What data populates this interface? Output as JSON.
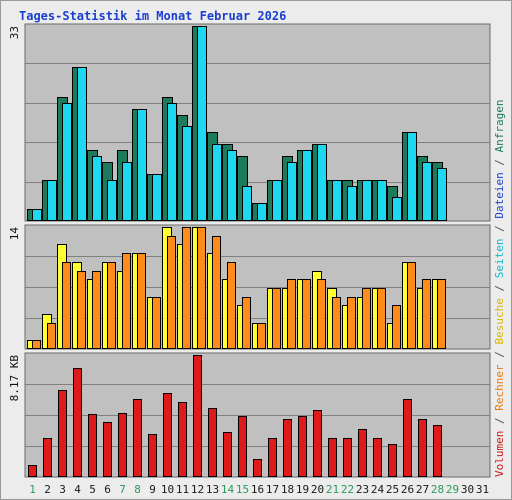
{
  "title": "Tages-Statistik im Monat Februar 2026",
  "colors": {
    "anfragen": "#1e7a5c",
    "dateien": "#1ed8f0",
    "seiten": "#1ed8f0",
    "besuche": "#ffff33",
    "rechner": "#ff8c1a",
    "volumen": "#e01a1a",
    "weekday_label": "#1a1a1a",
    "weekend_label": "#2a9a5a",
    "panel_bg": "#c0c0c0",
    "grid": "#808080"
  },
  "legend": [
    {
      "text": "Volumen",
      "color": "#cc1a1a"
    },
    {
      "text": " / ",
      "color": "#555555"
    },
    {
      "text": "Rechner",
      "color": "#ee7a10"
    },
    {
      "text": " / ",
      "color": "#555555"
    },
    {
      "text": "Besuche",
      "color": "#d8b800"
    },
    {
      "text": " / ",
      "color": "#555555"
    },
    {
      "text": "Seiten",
      "color": "#15b8d0"
    },
    {
      "text": " / ",
      "color": "#555555"
    },
    {
      "text": "Dateien",
      "color": "#1a40d0"
    },
    {
      "text": " / ",
      "color": "#555555"
    },
    {
      "text": "Anfragen",
      "color": "#1e7a5c"
    }
  ],
  "chart_data": [
    {
      "type": "bar",
      "panel": "top",
      "ymax_label": "33",
      "ylim": [
        0,
        33
      ],
      "categories": [
        "1",
        "2",
        "3",
        "4",
        "5",
        "6",
        "7",
        "8",
        "9",
        "10",
        "11",
        "12",
        "13",
        "14",
        "15",
        "16",
        "17",
        "18",
        "19",
        "20",
        "21",
        "22",
        "23",
        "24",
        "25",
        "26",
        "27",
        "28",
        "29",
        "30",
        "31"
      ],
      "weekend": [
        1,
        7,
        8,
        14,
        15,
        21,
        22,
        28,
        29
      ],
      "series": [
        {
          "name": "Anfragen",
          "values": [
            2,
            7,
            21,
            26,
            12,
            10,
            12,
            19,
            8,
            21,
            18,
            33,
            15,
            13,
            11,
            3,
            7,
            11,
            12,
            13,
            7,
            7,
            7,
            7,
            6,
            15,
            11,
            10,
            0,
            0,
            0
          ]
        },
        {
          "name": "Dateien",
          "values": [
            2,
            7,
            20,
            26,
            11,
            7,
            10,
            19,
            8,
            20,
            16,
            33,
            13,
            12,
            6,
            3,
            7,
            10,
            12,
            13,
            7,
            6,
            7,
            7,
            4,
            15,
            10,
            9,
            0,
            0,
            0
          ]
        }
      ]
    },
    {
      "type": "bar",
      "panel": "middle",
      "ymax_label": "14",
      "ylim": [
        0,
        14
      ],
      "categories": [
        "1",
        "2",
        "3",
        "4",
        "5",
        "6",
        "7",
        "8",
        "9",
        "10",
        "11",
        "12",
        "13",
        "14",
        "15",
        "16",
        "17",
        "18",
        "19",
        "20",
        "21",
        "22",
        "23",
        "24",
        "25",
        "26",
        "27",
        "28",
        "29",
        "30",
        "31"
      ],
      "series": [
        {
          "name": "Besuche",
          "values": [
            1,
            4,
            12,
            10,
            8,
            10,
            9,
            11,
            6,
            14,
            12,
            14,
            11,
            8,
            5,
            3,
            7,
            7,
            8,
            9,
            7,
            5,
            6,
            7,
            3,
            10,
            7,
            8,
            0,
            0,
            0
          ]
        },
        {
          "name": "Rechner",
          "values": [
            1,
            3,
            10,
            9,
            9,
            10,
            11,
            11,
            6,
            13,
            14,
            14,
            13,
            10,
            6,
            3,
            7,
            8,
            8,
            8,
            6,
            6,
            7,
            7,
            5,
            10,
            8,
            8,
            0,
            0,
            0
          ]
        }
      ]
    },
    {
      "type": "bar",
      "panel": "bottom",
      "ymax_label": "8.17 KB",
      "ylim": [
        0,
        8.17
      ],
      "categories": [
        "1",
        "2",
        "3",
        "4",
        "5",
        "6",
        "7",
        "8",
        "9",
        "10",
        "11",
        "12",
        "13",
        "14",
        "15",
        "16",
        "17",
        "18",
        "19",
        "20",
        "21",
        "22",
        "23",
        "24",
        "25",
        "26",
        "27",
        "28",
        "29",
        "30",
        "31"
      ],
      "series": [
        {
          "name": "Volumen",
          "values": [
            0.8,
            2.6,
            5.8,
            7.3,
            4.2,
            3.7,
            4.3,
            5.2,
            2.9,
            5.6,
            5.0,
            8.17,
            4.6,
            3.0,
            4.1,
            1.2,
            2.6,
            3.9,
            4.1,
            4.5,
            2.6,
            2.6,
            3.2,
            2.6,
            2.2,
            5.2,
            3.9,
            3.5,
            0,
            0,
            0
          ]
        }
      ]
    }
  ]
}
